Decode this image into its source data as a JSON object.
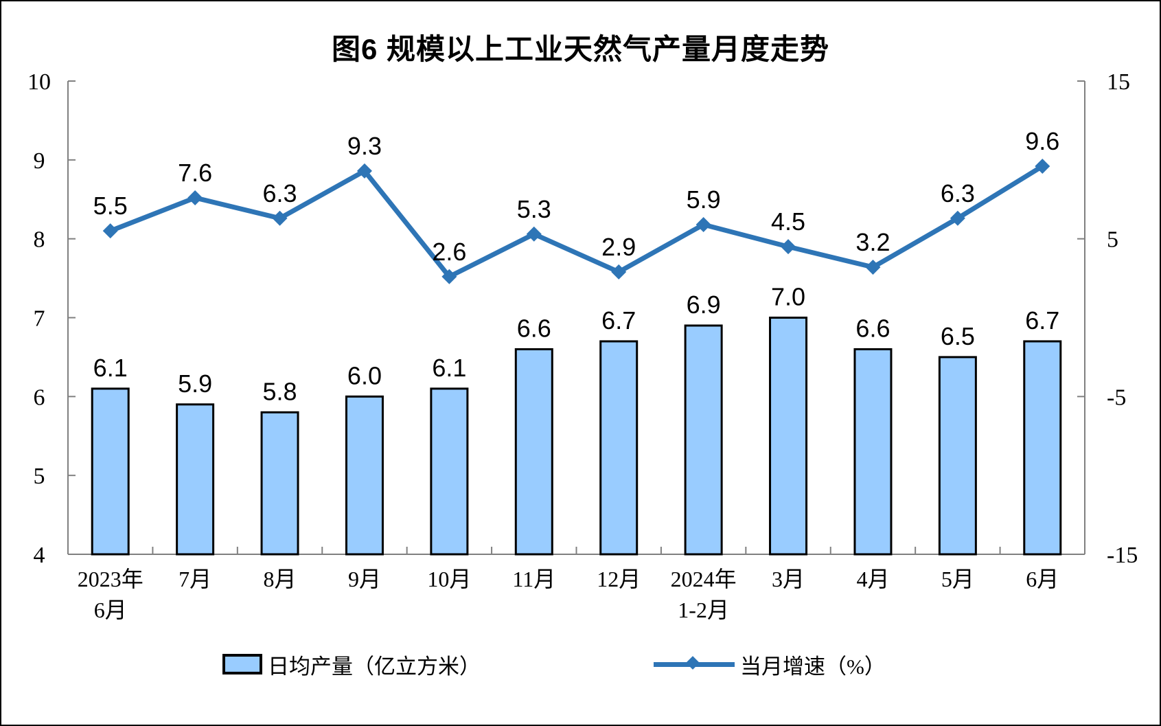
{
  "figure": {
    "title": "图6 规模以上工业天然气产量月度走势",
    "background_color": "#FFFFFF",
    "frame_color": "#000000"
  },
  "chart_data": {
    "type": "bar+line combo",
    "title": "图6 规模以上工业天然气产量月度走势",
    "categories": [
      [
        "2023年",
        "6月"
      ],
      [
        "7月"
      ],
      [
        "8月"
      ],
      [
        "9月"
      ],
      [
        "10月"
      ],
      [
        "11月"
      ],
      [
        "12月"
      ],
      [
        "2024年",
        "1-2月"
      ],
      [
        "3月"
      ],
      [
        "4月"
      ],
      [
        "5月"
      ],
      [
        "6月"
      ]
    ],
    "series": [
      {
        "name": "日均产量（亿立方米）",
        "type": "bar",
        "axis": "left",
        "values": [
          6.1,
          5.9,
          5.8,
          6.0,
          6.1,
          6.6,
          6.7,
          6.9,
          7.0,
          6.6,
          6.5,
          6.7
        ],
        "color": "#99CCFF",
        "border_color": "#000000",
        "label_decimals": 1
      },
      {
        "name": "当月增速（%）",
        "type": "line",
        "axis": "right",
        "values": [
          5.5,
          7.6,
          6.3,
          9.3,
          2.6,
          5.3,
          2.9,
          5.9,
          4.5,
          3.2,
          6.3,
          9.6
        ],
        "color": "#2E75B6",
        "marker": "diamond",
        "label_decimals": 1
      }
    ],
    "left_axis": {
      "min": 4,
      "max": 10,
      "tick_labels": [
        10,
        9,
        8,
        7,
        6,
        5,
        4
      ]
    },
    "right_axis": {
      "min": -15,
      "max": 15,
      "tick_labels": [
        15,
        5,
        -5,
        -15
      ]
    },
    "grid": false,
    "legend_position": "bottom",
    "axis_line_color": "#808080",
    "text_color": "#000000"
  },
  "legend": {
    "items": [
      {
        "label": "日均产量（亿立方米）",
        "swatch": "bar-swatch"
      },
      {
        "label": "当月增速（%）",
        "swatch": "line-diamond-swatch"
      }
    ]
  }
}
